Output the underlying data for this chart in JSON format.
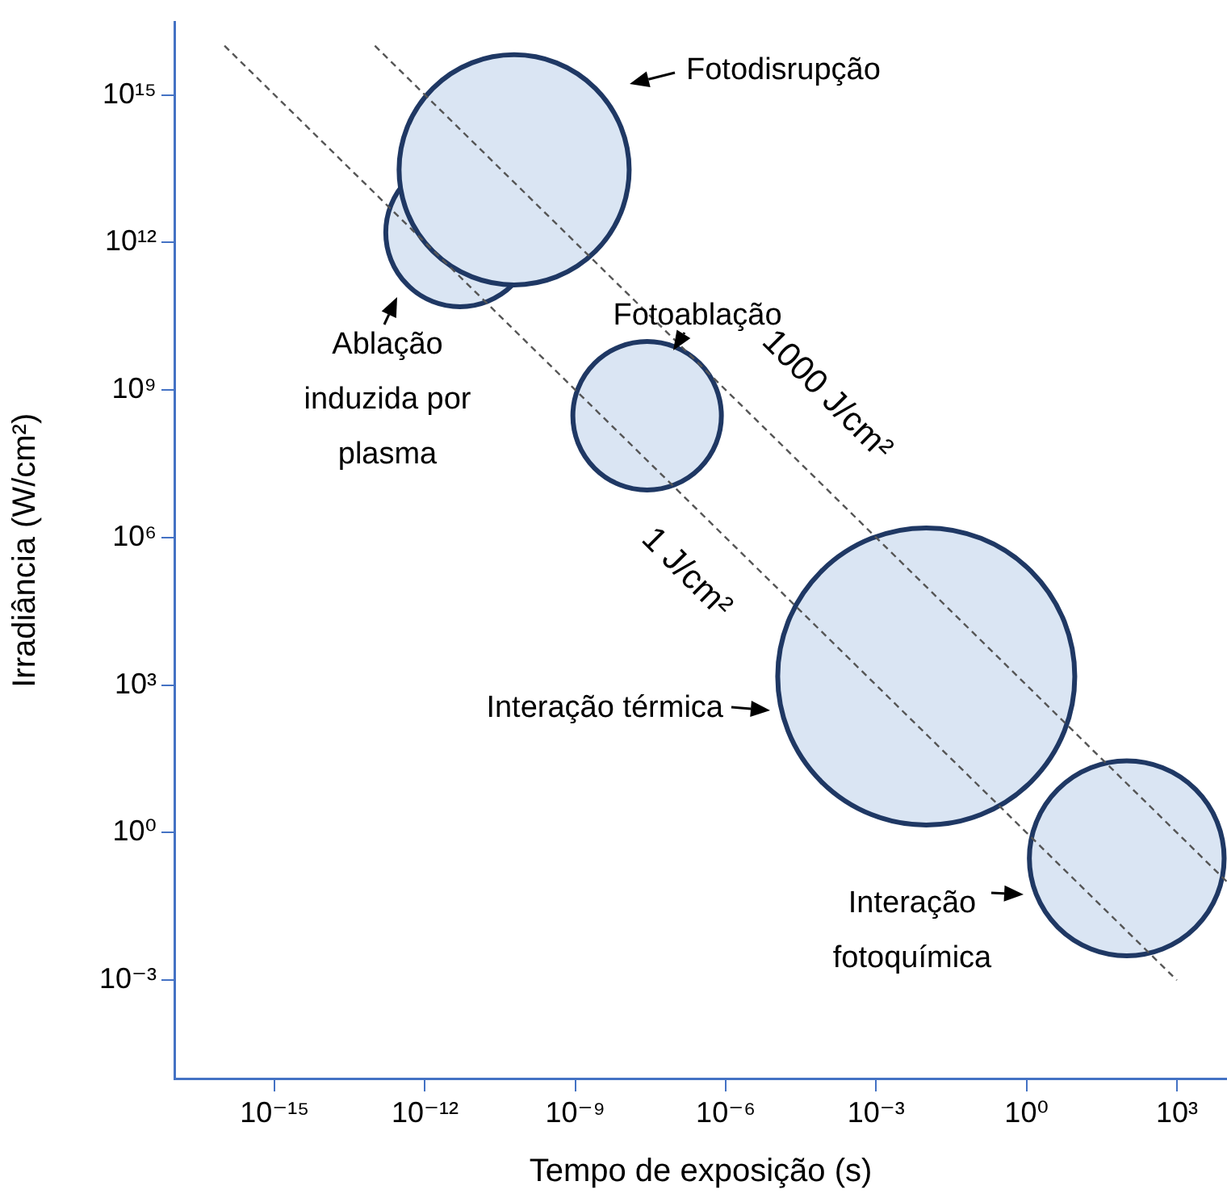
{
  "chart_data": {
    "type": "bubble",
    "xlabel": "Tempo de exposição (s)",
    "ylabel": "Irradiância (W/cm²)",
    "log": "xy",
    "grid": false,
    "legend": false,
    "xlim": [
      1e-17,
      10000.0
    ],
    "ylim": [
      1e-05,
      3e+16
    ],
    "xticks": [
      {
        "value": 1e-15,
        "label": "10⁻¹⁵"
      },
      {
        "value": 1e-12,
        "label": "10⁻¹²"
      },
      {
        "value": 1e-09,
        "label": "10⁻⁹"
      },
      {
        "value": 1e-06,
        "label": "10⁻⁶"
      },
      {
        "value": 0.001,
        "label": "10⁻³"
      },
      {
        "value": 1,
        "label": "10⁰"
      },
      {
        "value": 1000.0,
        "label": "10³"
      }
    ],
    "yticks": [
      {
        "value": 0.001,
        "label": "10⁻³"
      },
      {
        "value": 1,
        "label": "10⁰"
      },
      {
        "value": 1000.0,
        "label": "10³"
      },
      {
        "value": 1000000.0,
        "label": "10⁶"
      },
      {
        "value": 1000000000.0,
        "label": "10⁹"
      },
      {
        "value": 1000000000000.0,
        "label": "10¹²"
      },
      {
        "value": 1000000000000000.0,
        "label": "10¹⁵"
      }
    ],
    "series": [
      {
        "name": "Fotodisrupção",
        "color": "#dae5f3",
        "x": [
          6e-11
        ],
        "values": [
          30000000000000.0
        ],
        "sizes": [
          0.6
        ]
      },
      {
        "name": "Ablação induzida por plasma",
        "color": "#dae5f3",
        "x": [
          5e-12
        ],
        "values": [
          1600000000000.0
        ],
        "sizes": [
          0.25
        ]
      },
      {
        "name": "Fotoablação",
        "color": "#dae5f3",
        "x": [
          2.7e-08
        ],
        "values": [
          300000000.0
        ],
        "sizes": [
          0.25
        ]
      },
      {
        "name": "Interação térmica",
        "color": "#dae5f3",
        "x": [
          0.01
        ],
        "values": [
          1500
        ],
        "sizes": [
          1
        ]
      },
      {
        "name": "Interação fotoquímica",
        "color": "#dae5f3",
        "x": [
          100
        ],
        "values": [
          0.3
        ],
        "sizes": [
          0.43
        ]
      },
      {
        "name": "1 J/cm²",
        "type": "line",
        "color": "#555555",
        "line_style": "dashed",
        "marker": "none",
        "x": [
          1e-16,
          1000.0
        ],
        "values": [
          1e+16,
          0.001
        ]
      },
      {
        "name": "1000 J/cm²",
        "type": "line",
        "color": "#555555",
        "line_style": "dashed",
        "marker": "none",
        "x": [
          1e-13,
          10000.0
        ],
        "values": [
          1e+16,
          0.1
        ]
      }
    ]
  }
}
